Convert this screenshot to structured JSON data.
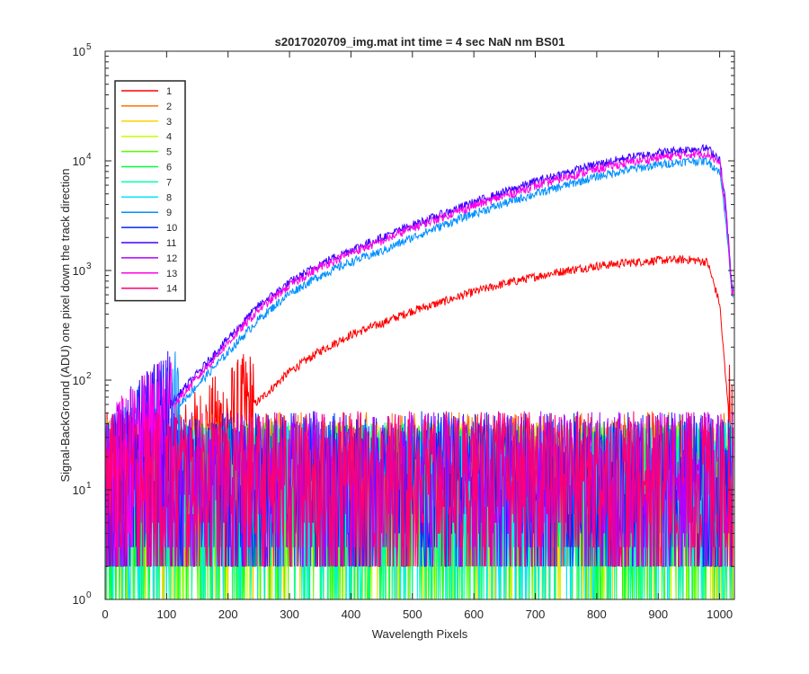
{
  "chart_data": {
    "type": "line",
    "title": "s2017020709_img.mat int time = 4 sec  NaN nm BS01",
    "xlabel": "Wavelength Pixels",
    "ylabel": "Signal-BackGround (ADU) one pixel down the track direction",
    "xlim": [
      0,
      1024
    ],
    "ylim": [
      1,
      100000
    ],
    "yscale": "log",
    "grid": false,
    "legend_position": "top-left",
    "x_ticks": [
      0,
      100,
      200,
      300,
      400,
      500,
      600,
      700,
      800,
      900,
      1000
    ],
    "y_ticks": [
      {
        "value": 1,
        "base": "10",
        "exp": "0"
      },
      {
        "value": 10,
        "base": "10",
        "exp": "1"
      },
      {
        "value": 100,
        "base": "10",
        "exp": "2"
      },
      {
        "value": 1000,
        "base": "10",
        "exp": "3"
      },
      {
        "value": 10000,
        "base": "10",
        "exp": "4"
      },
      {
        "value": 100000,
        "base": "10",
        "exp": "5"
      }
    ],
    "x": [
      0,
      50,
      100,
      150,
      200,
      250,
      300,
      350,
      400,
      450,
      500,
      550,
      600,
      650,
      700,
      750,
      800,
      850,
      900,
      950,
      980,
      1000,
      1010,
      1020
    ],
    "series": [
      {
        "name": "1",
        "color": "#ff0000",
        "noise": true,
        "values": [
          15,
          15,
          15,
          25,
          40,
          65,
          120,
          185,
          260,
          330,
          430,
          520,
          640,
          760,
          880,
          1000,
          1100,
          1180,
          1240,
          1260,
          1200,
          500,
          100,
          30
        ]
      },
      {
        "name": "2",
        "color": "#ff7300",
        "noise": true,
        "values": [
          15,
          15,
          15,
          15,
          15,
          15,
          15,
          15,
          15,
          15,
          15,
          15,
          15,
          15,
          15,
          15,
          15,
          15,
          15,
          15,
          15,
          15,
          15,
          15
        ]
      },
      {
        "name": "3",
        "color": "#ffd000",
        "noise": true,
        "values": [
          12,
          12,
          12,
          12,
          12,
          12,
          12,
          12,
          12,
          12,
          12,
          12,
          12,
          12,
          12,
          12,
          12,
          12,
          12,
          12,
          12,
          12,
          12,
          12
        ]
      },
      {
        "name": "4",
        "color": "#c8ff00",
        "noise": true,
        "values": [
          12,
          12,
          12,
          12,
          12,
          12,
          12,
          12,
          12,
          12,
          12,
          12,
          12,
          12,
          12,
          12,
          12,
          12,
          12,
          12,
          12,
          12,
          12,
          12
        ]
      },
      {
        "name": "5",
        "color": "#55ff00",
        "noise": true,
        "values": [
          12,
          12,
          12,
          12,
          12,
          12,
          12,
          12,
          12,
          12,
          12,
          12,
          12,
          12,
          12,
          12,
          12,
          12,
          12,
          12,
          12,
          12,
          12,
          12
        ]
      },
      {
        "name": "6",
        "color": "#00ff40",
        "noise": true,
        "values": [
          12,
          12,
          12,
          12,
          12,
          12,
          12,
          12,
          12,
          12,
          12,
          12,
          12,
          12,
          12,
          12,
          12,
          12,
          12,
          12,
          12,
          12,
          12,
          12
        ]
      },
      {
        "name": "7",
        "color": "#00ffaa",
        "noise": true,
        "values": [
          12,
          12,
          12,
          12,
          12,
          12,
          12,
          12,
          12,
          12,
          12,
          12,
          12,
          12,
          12,
          12,
          12,
          12,
          12,
          12,
          12,
          12,
          12,
          12
        ]
      },
      {
        "name": "8",
        "color": "#00e6ff",
        "noise": true,
        "values": [
          12,
          12,
          12,
          12,
          12,
          12,
          12,
          12,
          12,
          12,
          12,
          12,
          12,
          12,
          12,
          12,
          12,
          12,
          12,
          12,
          12,
          12,
          12,
          12
        ]
      },
      {
        "name": "9",
        "color": "#0090ff",
        "noise": true,
        "values": [
          15,
          25,
          45,
          90,
          180,
          360,
          620,
          900,
          1200,
          1500,
          2000,
          2600,
          3300,
          4100,
          5000,
          6000,
          7200,
          8300,
          9200,
          10000,
          10000,
          8000,
          3000,
          600
        ]
      },
      {
        "name": "10",
        "color": "#0028ff",
        "noise": true,
        "values": [
          15,
          15,
          15,
          15,
          15,
          15,
          15,
          15,
          15,
          15,
          15,
          15,
          15,
          15,
          15,
          15,
          15,
          15,
          15,
          15,
          15,
          15,
          15,
          15
        ]
      },
      {
        "name": "11",
        "color": "#4000ff",
        "noise": true,
        "values": [
          15,
          30,
          55,
          115,
          240,
          480,
          780,
          1150,
          1550,
          2000,
          2600,
          3300,
          4200,
          5200,
          6500,
          7800,
          9300,
          10700,
          11900,
          12800,
          13000,
          10500,
          4000,
          700
        ]
      },
      {
        "name": "12",
        "color": "#b000ff",
        "noise": true,
        "values": [
          15,
          15,
          15,
          15,
          15,
          15,
          15,
          15,
          15,
          15,
          15,
          15,
          15,
          15,
          15,
          15,
          15,
          15,
          15,
          15,
          15,
          15,
          15,
          15
        ]
      },
      {
        "name": "13",
        "color": "#ff00e6",
        "noise": true,
        "values": [
          15,
          28,
          50,
          105,
          220,
          440,
          730,
          1080,
          1450,
          1850,
          2450,
          3100,
          3900,
          4800,
          5900,
          7100,
          8400,
          9600,
          10700,
          11500,
          11700,
          9500,
          3500,
          650
        ]
      },
      {
        "name": "14",
        "color": "#ff0070",
        "noise": true,
        "values": [
          15,
          15,
          15,
          15,
          15,
          15,
          15,
          15,
          15,
          15,
          15,
          15,
          15,
          15,
          15,
          15,
          15,
          15,
          15,
          15,
          15,
          15,
          15,
          15
        ]
      }
    ]
  }
}
